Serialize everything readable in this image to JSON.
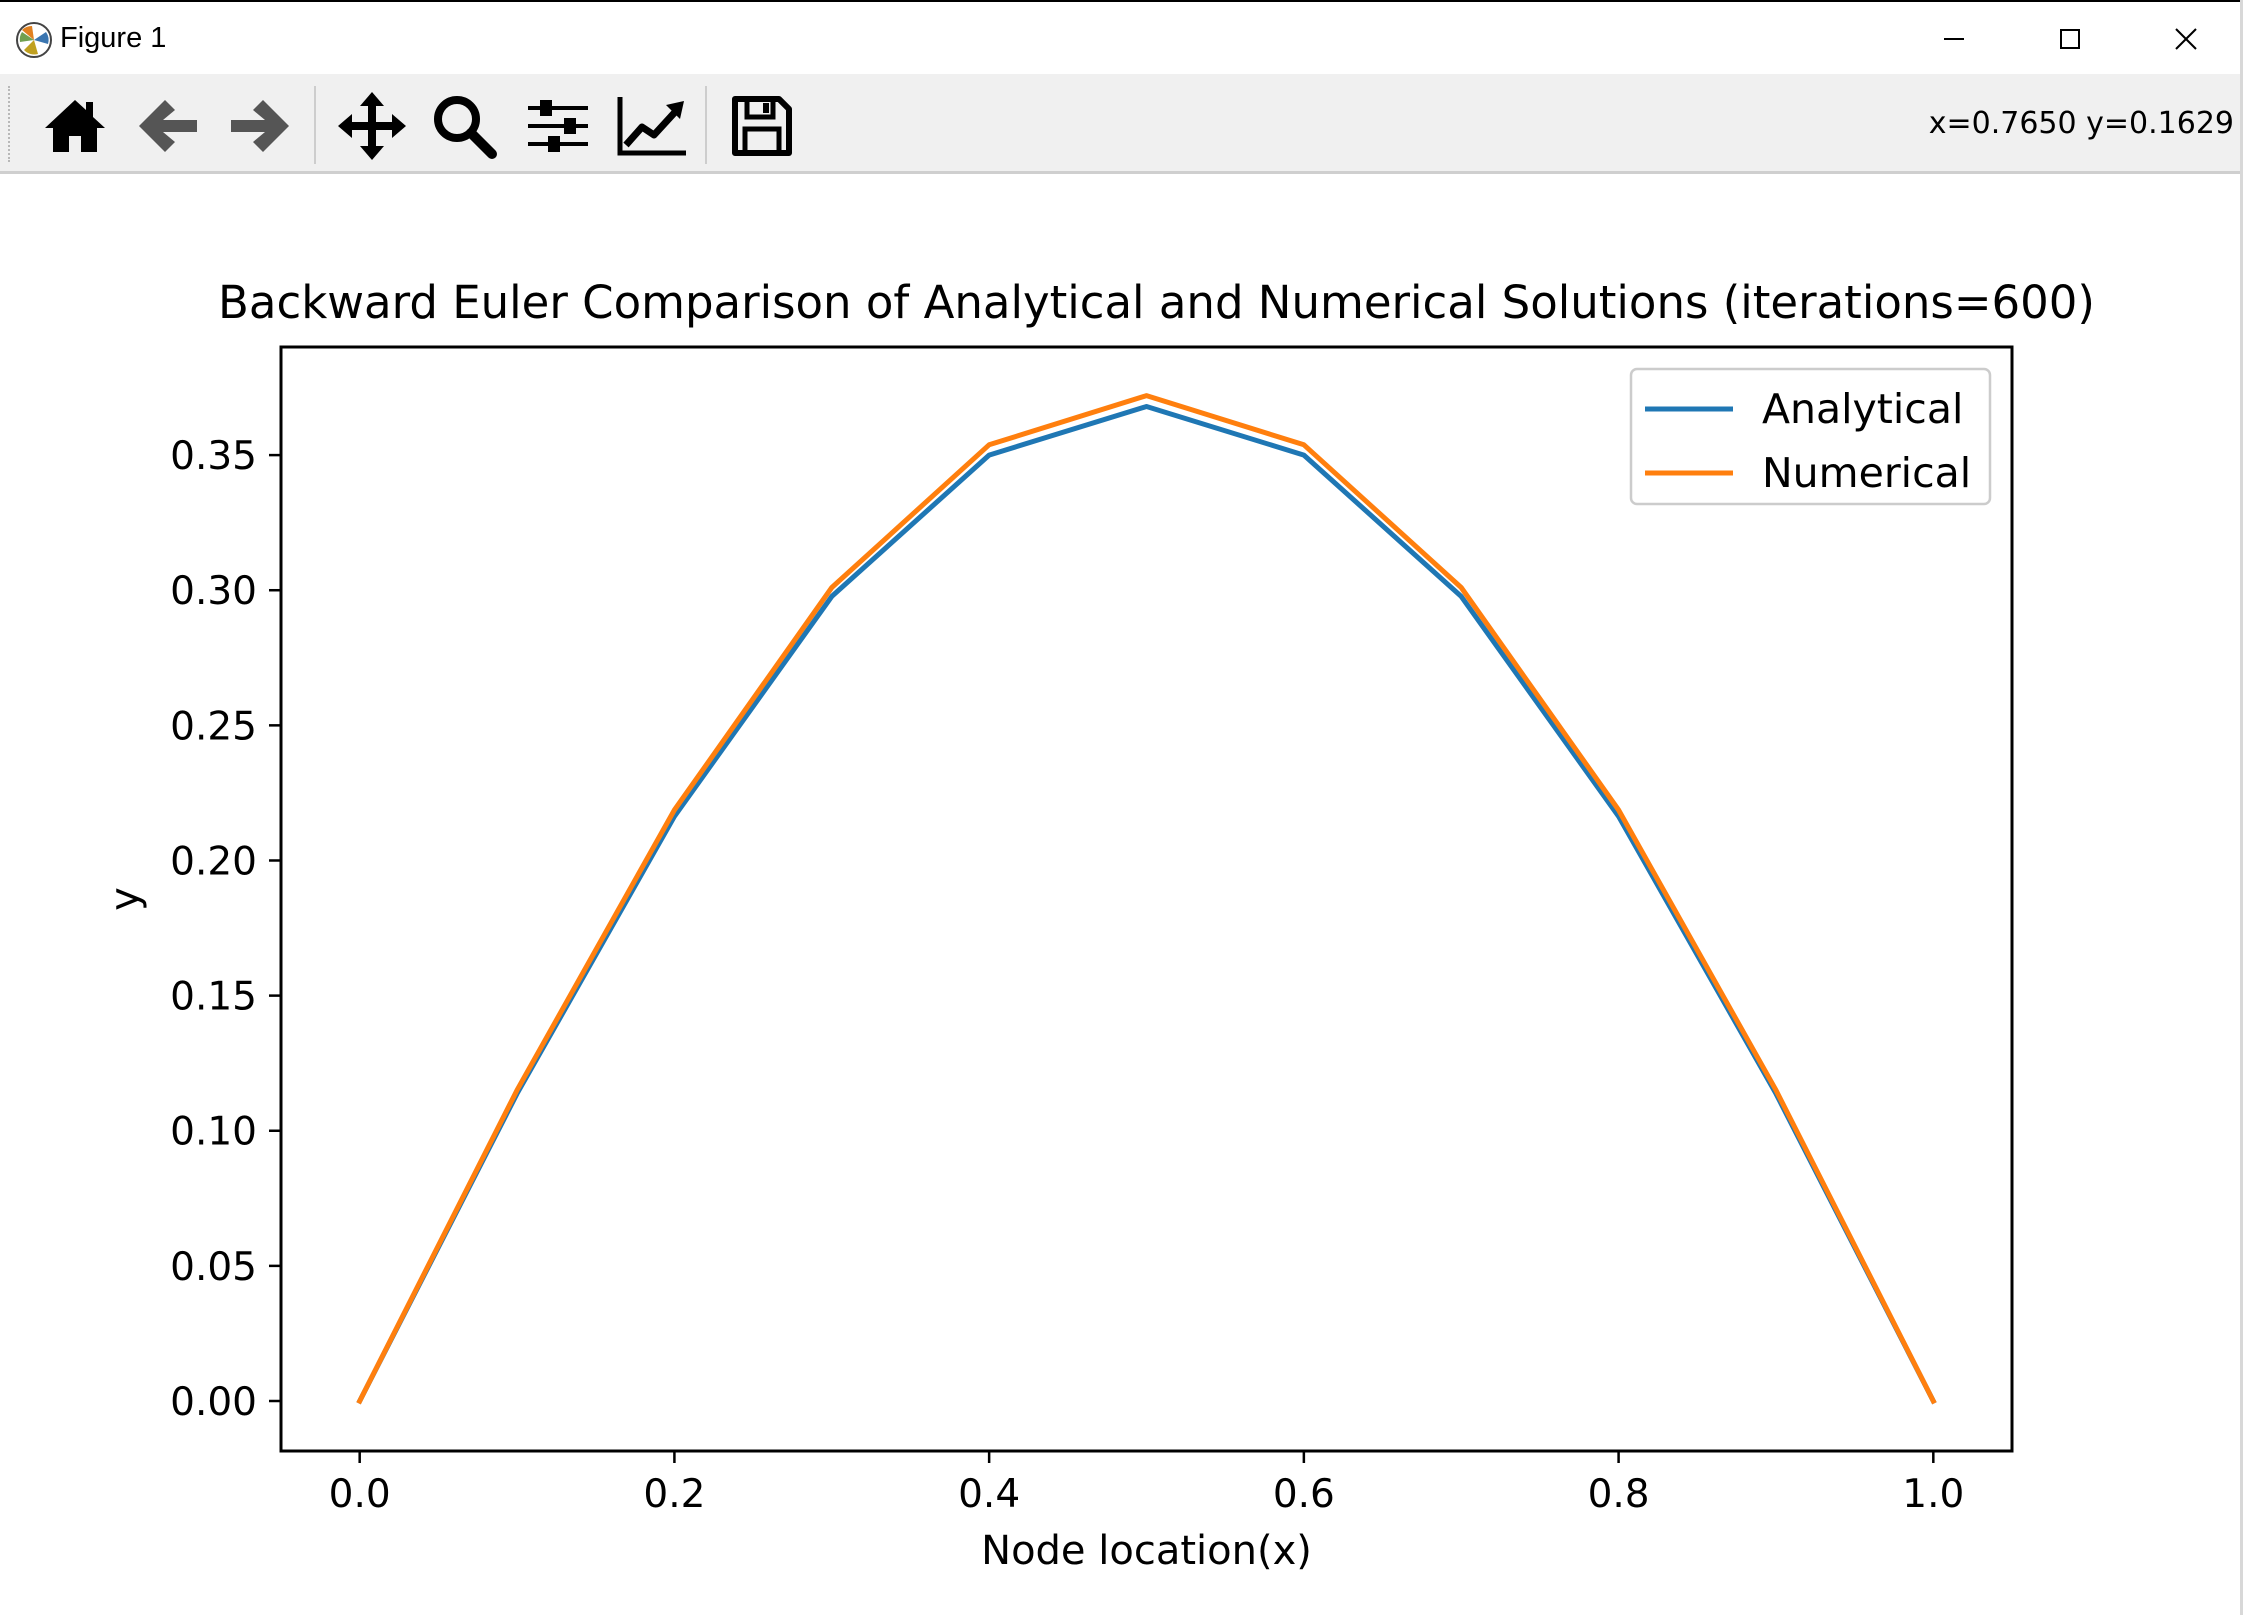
{
  "window": {
    "title": "Figure 1",
    "app_icon": "matplotlib-icon",
    "controls": [
      "minimize-icon",
      "maximize-icon",
      "close-icon"
    ]
  },
  "toolbar": {
    "tools": [
      {
        "name": "home-button",
        "icon": "home-icon"
      },
      {
        "name": "back-button",
        "icon": "arrow-left-icon"
      },
      {
        "name": "forward-button",
        "icon": "arrow-right-icon"
      },
      {
        "name": "pan-button",
        "icon": "move-icon"
      },
      {
        "name": "zoom-button",
        "icon": "magnifier-icon"
      },
      {
        "name": "configure-subplots-button",
        "icon": "sliders-icon"
      },
      {
        "name": "edit-axis-button",
        "icon": "chart-edit-icon"
      },
      {
        "name": "save-button",
        "icon": "floppy-disk-icon"
      }
    ],
    "coordinates": "x=0.7650 y=0.1629"
  },
  "chart_data": {
    "type": "line",
    "title": "Backward Euler Comparison of Analytical and Numerical Solutions (iterations=600)",
    "xlabel": "Node location(x)",
    "ylabel": "y",
    "xlim": [
      -0.05,
      1.05
    ],
    "ylim": [
      -0.0185,
      0.39
    ],
    "xticks": [
      "0.0",
      "0.2",
      "0.4",
      "0.6",
      "0.8",
      "1.0"
    ],
    "yticks": [
      "0.00",
      "0.05",
      "0.10",
      "0.15",
      "0.20",
      "0.25",
      "0.30",
      "0.35"
    ],
    "grid": false,
    "legend": "upper-right",
    "x": [
      0.0,
      0.1,
      0.2,
      0.3,
      0.4,
      0.5,
      0.6,
      0.7,
      0.8,
      0.9,
      1.0
    ],
    "series": [
      {
        "name": "Analytical",
        "color": "#1f77b4",
        "values": [
          0.0,
          0.1137,
          0.2163,
          0.2977,
          0.35,
          0.368,
          0.35,
          0.2977,
          0.2163,
          0.1137,
          0.0
        ]
      },
      {
        "name": "Numerical",
        "color": "#ff7f0e",
        "values": [
          0.0,
          0.115,
          0.2187,
          0.301,
          0.3538,
          0.372,
          0.3538,
          0.301,
          0.2187,
          0.115,
          0.0
        ]
      }
    ]
  }
}
